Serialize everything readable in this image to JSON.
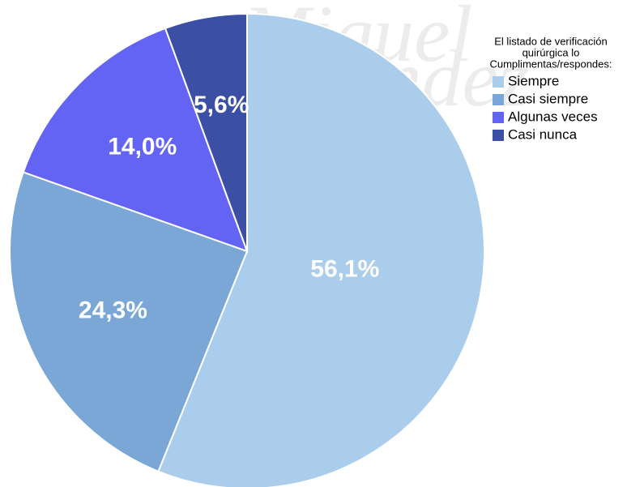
{
  "chart_data": {
    "type": "pie",
    "watermark": [
      "Miguel",
      "Hernández"
    ],
    "legend_title": [
      "El listado de verificación",
      "quirúrgica lo",
      "Cumplimentas/respondes:"
    ],
    "categories": [
      "Siempre",
      "Casi siempre",
      "Algunas veces",
      "Casi nunca"
    ],
    "values": [
      56.1,
      24.3,
      14.0,
      5.6
    ],
    "value_labels": [
      "56,1%",
      "24,3%",
      "14,0%",
      "5,6%"
    ],
    "colors": [
      "#abcdec",
      "#7aa7d5",
      "#6363f4",
      "#3b4fa5"
    ],
    "legend": "right"
  }
}
